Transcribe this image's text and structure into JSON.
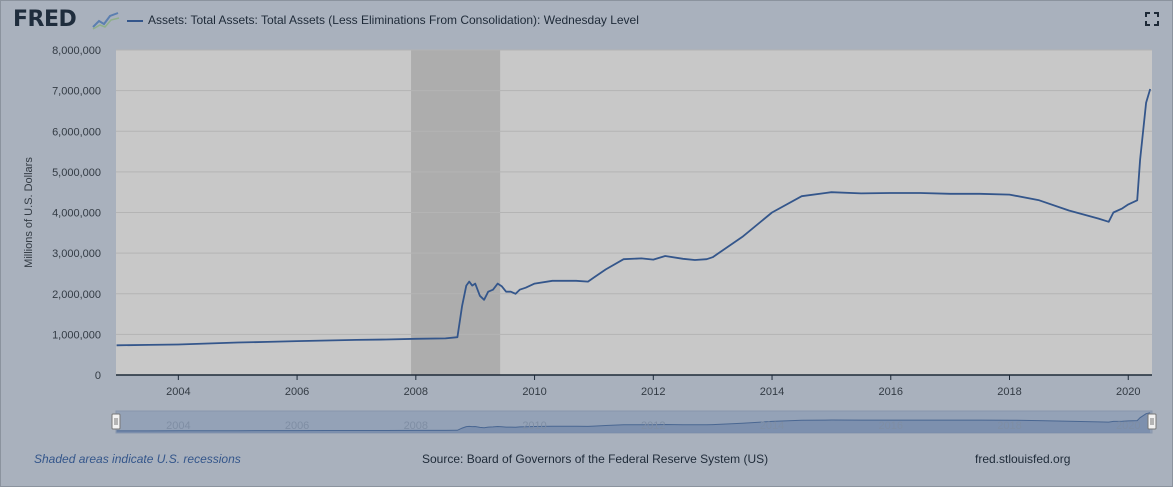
{
  "header": {
    "logo_text": "FRED",
    "series_title": "Assets: Total Assets: Total Assets (Less Eliminations From Consolidation): Wednesday Level"
  },
  "footer": {
    "recession_note": "Shaded areas indicate U.S. recessions",
    "source": "Source: Board of Governors of the Federal Reserve System (US)",
    "site": "fred.stlouisfed.org"
  },
  "colors": {
    "line": "#34568b",
    "plot_bg": "#c8c8c8",
    "recession": "#adadad",
    "page_bg": "#a9b1bd"
  },
  "icons": [
    "fred-logo-sparkline-icon",
    "fullscreen-icon",
    "navigator-left-handle-icon",
    "navigator-right-handle-icon"
  ],
  "chart_data": {
    "type": "line",
    "title": "",
    "xlabel": "",
    "ylabel": "Millions of U.S. Dollars",
    "xlim": [
      2002.95,
      2020.4
    ],
    "ylim": [
      0,
      8000000
    ],
    "grid": true,
    "legend": "top-left",
    "y_ticks": [
      "0",
      "1,000,000",
      "2,000,000",
      "3,000,000",
      "4,000,000",
      "5,000,000",
      "6,000,000",
      "7,000,000",
      "8,000,000"
    ],
    "y_tick_values": [
      0,
      1000000,
      2000000,
      3000000,
      4000000,
      5000000,
      6000000,
      7000000,
      8000000
    ],
    "x_ticks": [
      "2004",
      "2006",
      "2008",
      "2010",
      "2012",
      "2014",
      "2016",
      "2018",
      "2020"
    ],
    "x_tick_values": [
      2004,
      2006,
      2008,
      2010,
      2012,
      2014,
      2016,
      2018,
      2020
    ],
    "recessions": [
      [
        2007.92,
        2009.42
      ]
    ],
    "series": [
      {
        "x": [
          2002.96,
          2003.5,
          2004.0,
          2004.5,
          2005.0,
          2005.5,
          2006.0,
          2006.5,
          2007.0,
          2007.5,
          2008.0,
          2008.5,
          2008.7,
          2008.78,
          2008.85,
          2008.9,
          2008.95,
          2009.0,
          2009.08,
          2009.15,
          2009.22,
          2009.3,
          2009.38,
          2009.45,
          2009.52,
          2009.6,
          2009.68,
          2009.75,
          2009.85,
          2010.0,
          2010.3,
          2010.7,
          2010.9,
          2011.0,
          2011.2,
          2011.5,
          2011.8,
          2012.0,
          2012.2,
          2012.5,
          2012.7,
          2012.9,
          2013.0,
          2013.5,
          2014.0,
          2014.5,
          2014.9,
          2015.0,
          2015.5,
          2016.0,
          2016.5,
          2017.0,
          2017.5,
          2018.0,
          2018.5,
          2019.0,
          2019.5,
          2019.67,
          2019.75,
          2019.9,
          2020.0,
          2020.15,
          2020.2,
          2020.25,
          2020.3,
          2020.37
        ],
        "values": [
          730000,
          740000,
          750000,
          775000,
          800000,
          815000,
          835000,
          850000,
          865000,
          875000,
          890000,
          900000,
          930000,
          1700000,
          2200000,
          2300000,
          2200000,
          2250000,
          1950000,
          1850000,
          2050000,
          2100000,
          2250000,
          2180000,
          2050000,
          2050000,
          2000000,
          2100000,
          2150000,
          2250000,
          2320000,
          2320000,
          2300000,
          2400000,
          2600000,
          2850000,
          2870000,
          2840000,
          2930000,
          2860000,
          2830000,
          2850000,
          2900000,
          3400000,
          4000000,
          4400000,
          4480000,
          4500000,
          4470000,
          4480000,
          4480000,
          4460000,
          4460000,
          4440000,
          4300000,
          4050000,
          3850000,
          3770000,
          4000000,
          4100000,
          4200000,
          4300000,
          5300000,
          6000000,
          6700000,
          7040000
        ]
      }
    ]
  }
}
